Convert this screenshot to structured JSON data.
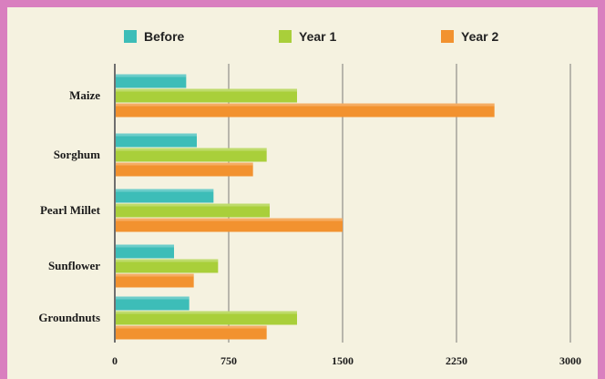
{
  "chart_data": {
    "type": "bar",
    "orientation": "horizontal",
    "categories": [
      "Maize",
      "Sorghum",
      "Pearl Millet",
      "Sunflower",
      "Groundnuts"
    ],
    "series": [
      {
        "name": "Before",
        "color": "#3dbdb8",
        "values": [
          470,
          540,
          650,
          390,
          490
        ]
      },
      {
        "name": "Year 1",
        "color": "#a9cf3a",
        "values": [
          1200,
          1000,
          1020,
          680,
          1200
        ]
      },
      {
        "name": "Year 2",
        "color": "#f2922f",
        "values": [
          2500,
          910,
          1500,
          520,
          1000
        ]
      }
    ],
    "xlim": [
      0,
      3000
    ],
    "xticks": [
      "0",
      "750",
      "1500",
      "2250",
      "3000"
    ],
    "grid": true,
    "legend_position": "top"
  }
}
